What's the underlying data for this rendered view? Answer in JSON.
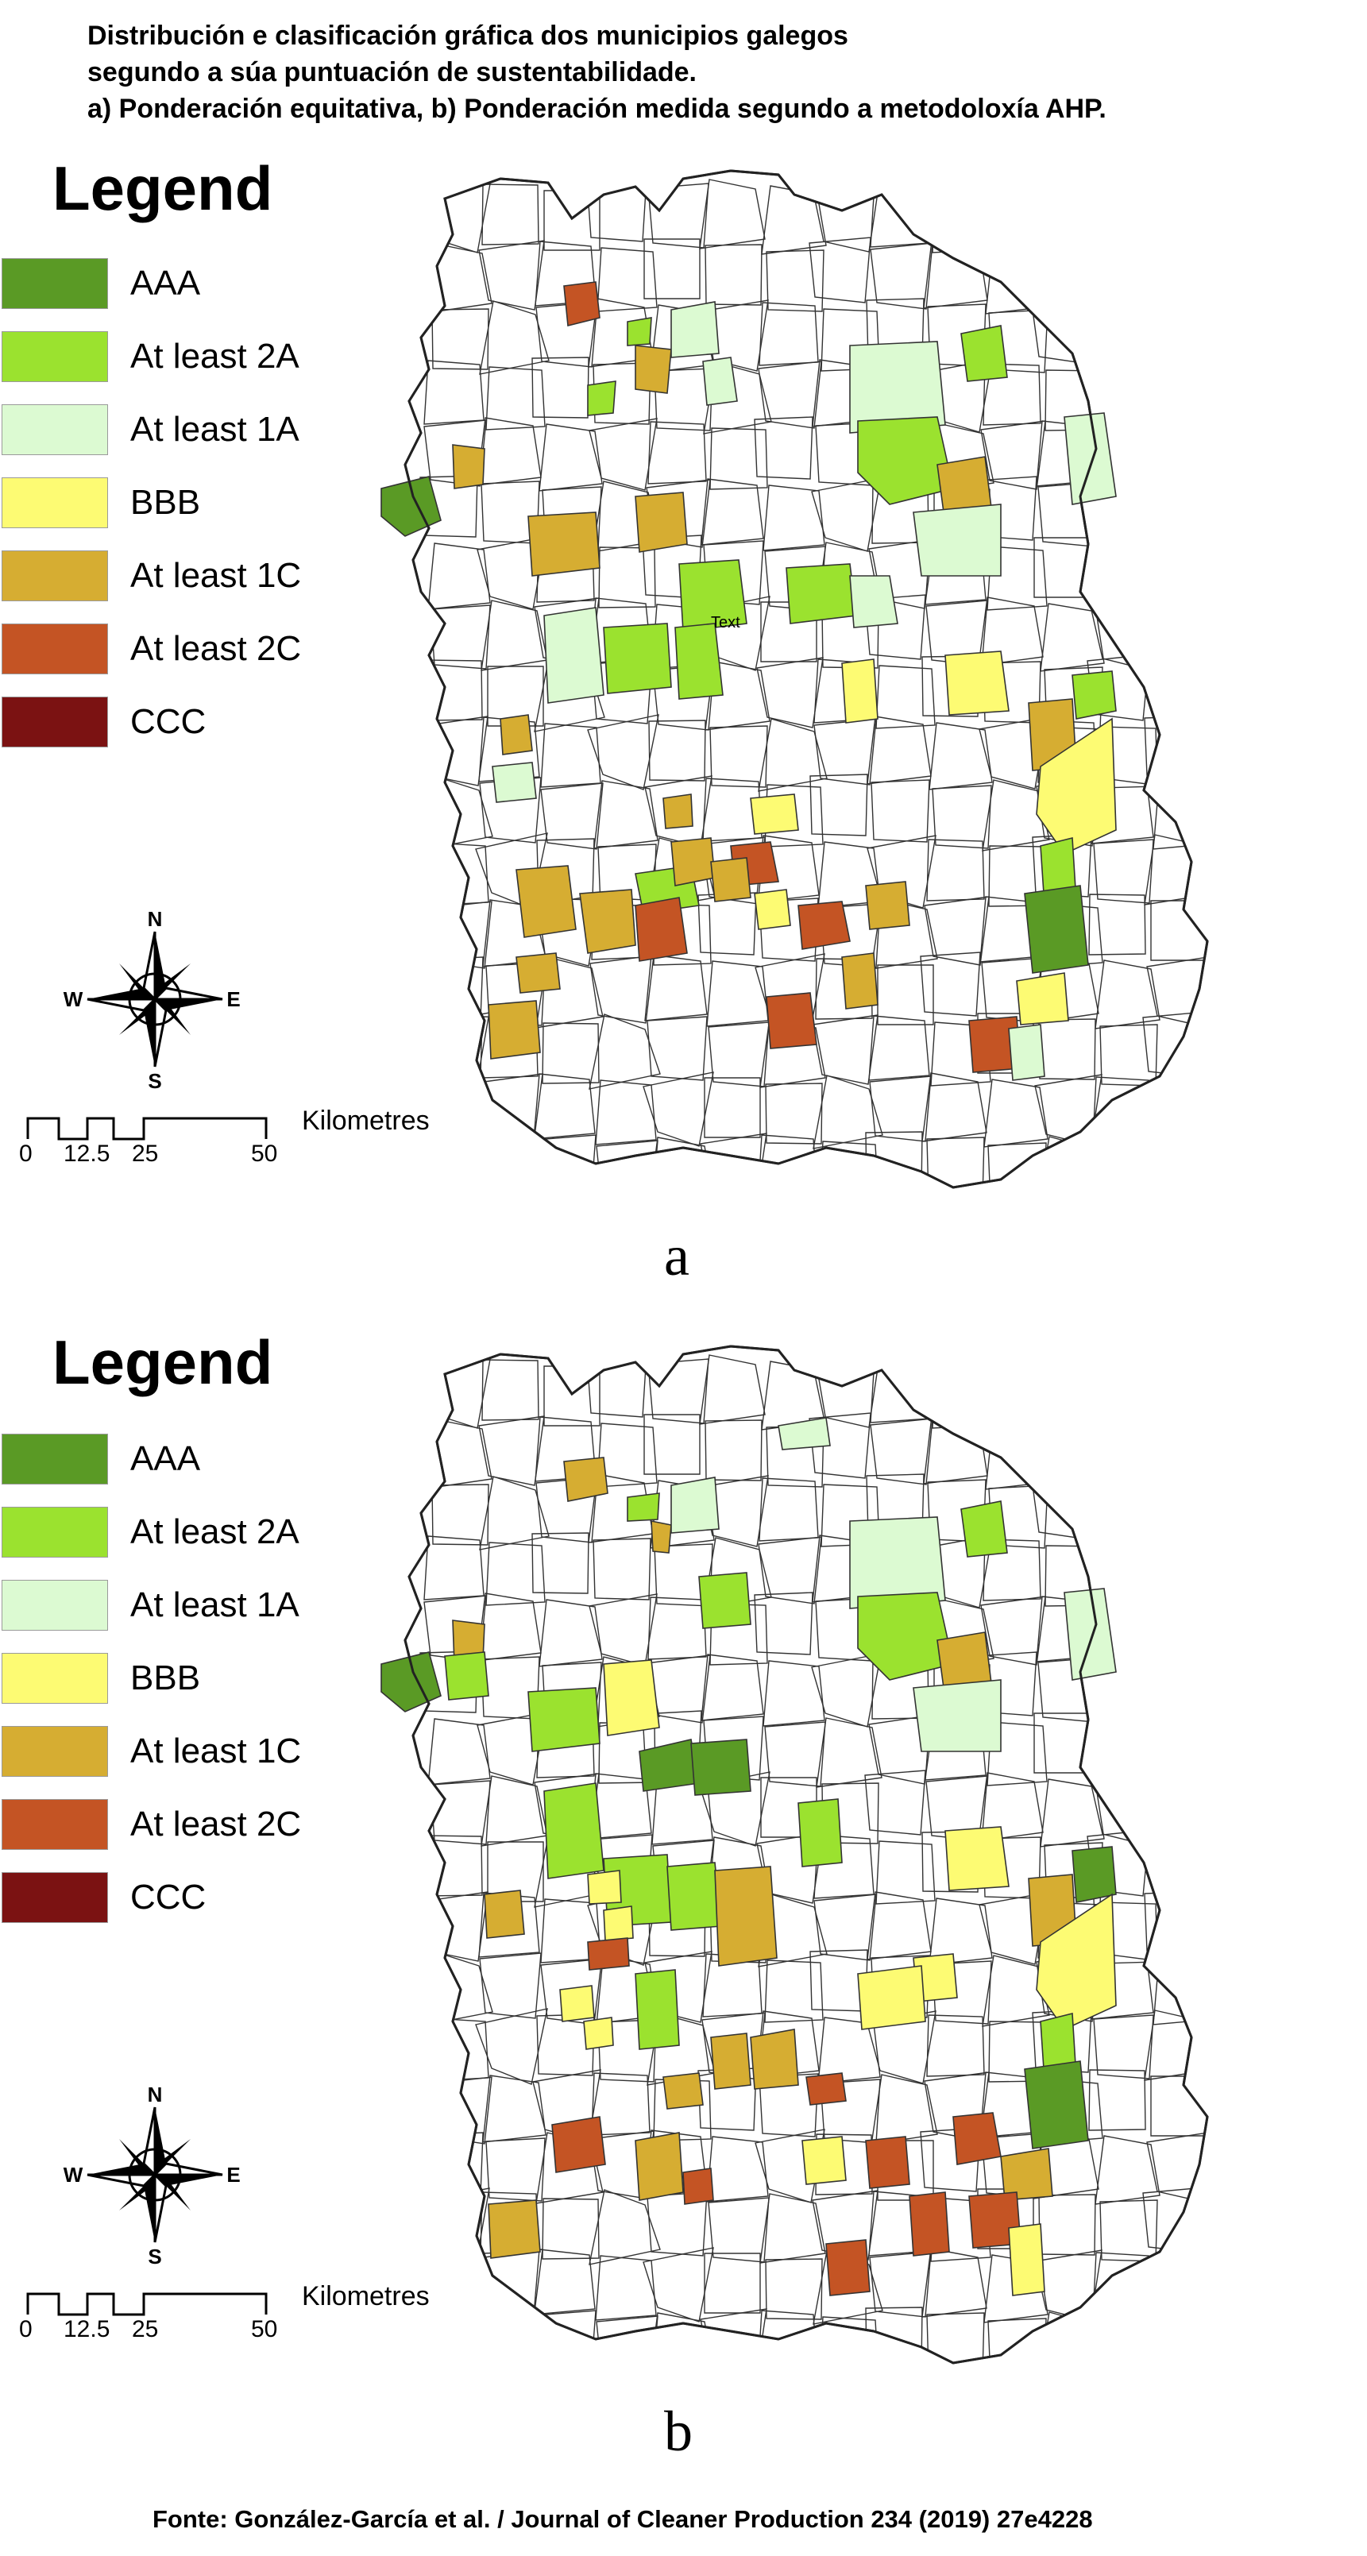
{
  "title_lines": [
    "Distribución e clasificación gráfica dos municipios galegos",
    "segundo a súa  puntuación de sustentabilidade.",
    "a) Ponderación equitativa,  b) Ponderación medida segundo a metodoloxía AHP."
  ],
  "legend": {
    "title": "Legend",
    "items": [
      {
        "label": "AAA",
        "color": "#5a9a25"
      },
      {
        "label": "At least 2A",
        "color": "#9be22f"
      },
      {
        "label": "At least 1A",
        "color": "#dcfad2"
      },
      {
        "label": "BBB",
        "color": "#fdfb73"
      },
      {
        "label": "At least 1C",
        "color": "#d6ad32"
      },
      {
        "label": "At least 2C",
        "color": "#c45424"
      },
      {
        "label": "CCC",
        "color": "#7b1212"
      }
    ]
  },
  "compass": {
    "n": "N",
    "s": "S",
    "e": "E",
    "w": "W"
  },
  "scale_bar": {
    "ticks": [
      "0",
      "12.5",
      "25",
      "50"
    ],
    "unit": "Kilometres"
  },
  "panels": [
    {
      "letter": "a",
      "map_label": "Text"
    },
    {
      "letter": "b",
      "map_label": ""
    }
  ],
  "source": "Fonte: González-García et al. / Journal of Cleaner Production 234 (2019) 27e4228"
}
